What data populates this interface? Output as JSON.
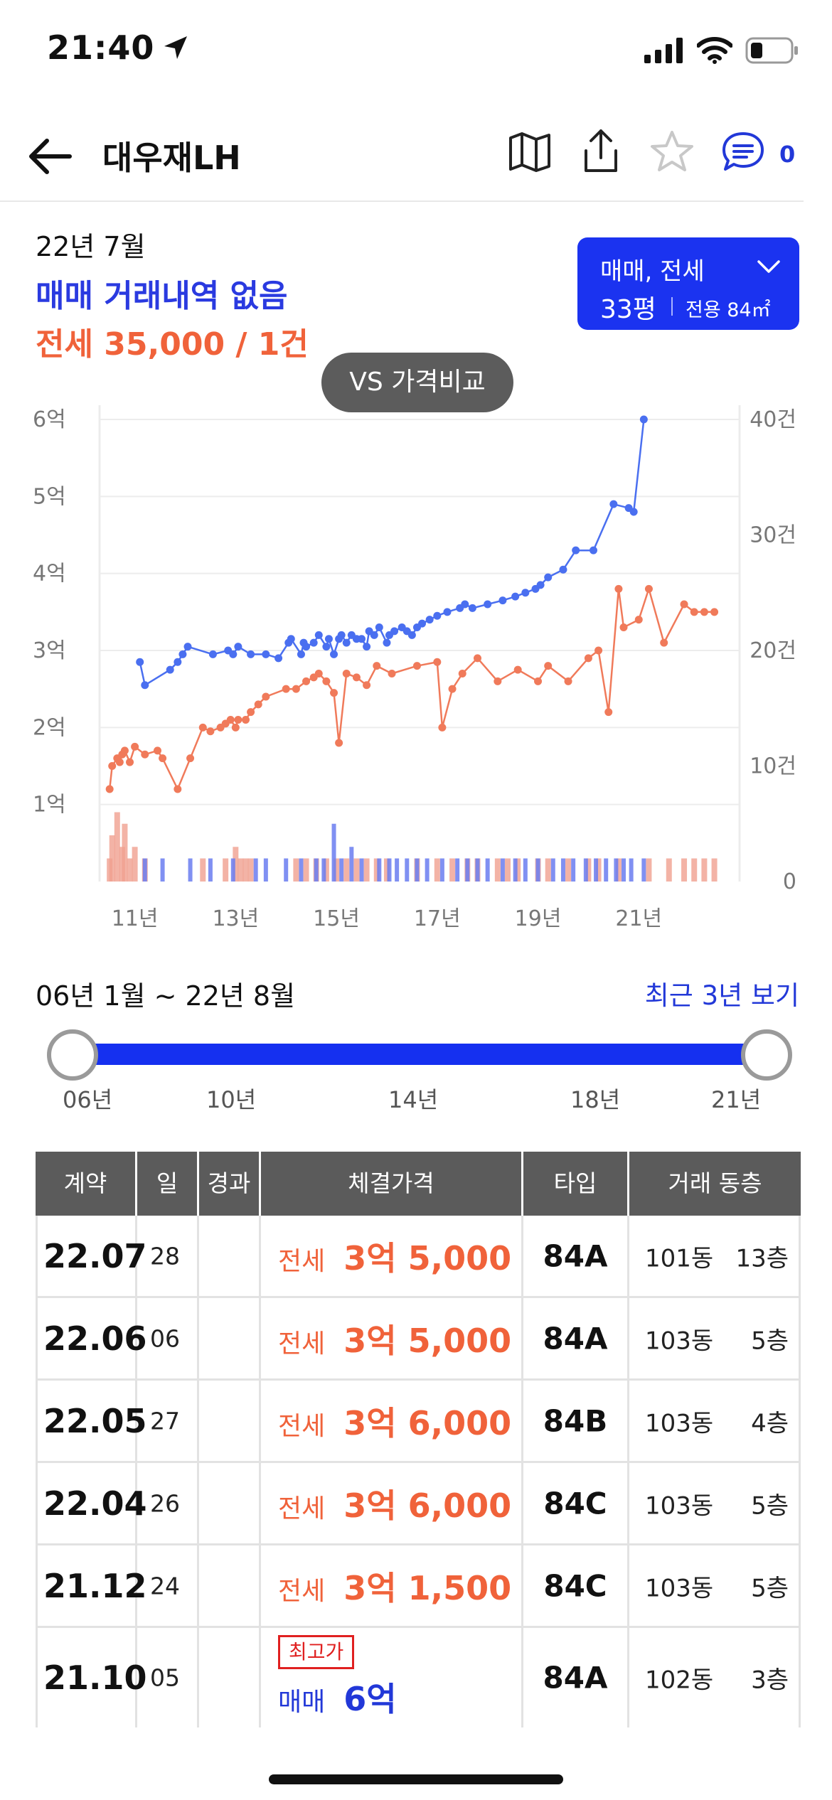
{
  "status_bar": {
    "time": "21:40"
  },
  "header": {
    "title": "대우재LH",
    "chat_count": "0"
  },
  "summary": {
    "date": "22년 7월",
    "sale": "매매 거래내역 없음",
    "lease": "전세 35,000 / 1건"
  },
  "filter": {
    "type": "매매, 전세",
    "size": "33평",
    "area": "전용 84㎡"
  },
  "vs_button": "VS 가격비교",
  "chart_data": {
    "type": "line",
    "x_labels": [
      "11년",
      "13년",
      "15년",
      "17년",
      "19년",
      "21년"
    ],
    "y_left_labels": [
      "1억",
      "2억",
      "3억",
      "4억",
      "5억",
      "6억"
    ],
    "y_left_range": [
      0,
      6
    ],
    "y_right_labels": [
      "0",
      "10건",
      "20건",
      "30건",
      "40건"
    ],
    "y_right_range": [
      0,
      40
    ],
    "x_range": [
      2010.3,
      2023.0
    ],
    "grid": true,
    "series": [
      {
        "color": "#4a6ff0",
        "x": [
          2011.1,
          2011.2,
          2011.7,
          2011.85,
          2011.95,
          2012.05,
          2012.55,
          2012.85,
          2012.95,
          2013.05,
          2013.3,
          2013.6,
          2013.85,
          2014.05,
          2014.1,
          2014.3,
          2014.35,
          2014.4,
          2014.55,
          2014.65,
          2014.8,
          2014.85,
          2014.95,
          2015.05,
          2015.1,
          2015.2,
          2015.3,
          2015.4,
          2015.5,
          2015.6,
          2015.65,
          2015.75,
          2015.85,
          2016.0,
          2016.05,
          2016.15,
          2016.3,
          2016.4,
          2016.5,
          2016.6,
          2016.7,
          2016.85,
          2017.0,
          2017.2,
          2017.45,
          2017.55,
          2017.7,
          2018.0,
          2018.3,
          2018.55,
          2018.75,
          2018.95,
          2019.05,
          2019.2,
          2019.5,
          2019.75,
          2020.1,
          2020.5,
          2020.8,
          2020.9,
          2021.1
        ],
        "y": [
          2.85,
          2.55,
          2.75,
          2.85,
          2.95,
          3.05,
          2.95,
          3.0,
          2.95,
          3.05,
          2.95,
          2.95,
          2.9,
          3.1,
          3.15,
          2.95,
          3.1,
          3.05,
          3.1,
          3.2,
          3.05,
          3.15,
          2.95,
          3.15,
          3.2,
          3.1,
          3.2,
          3.15,
          3.15,
          3.05,
          3.25,
          3.2,
          3.3,
          3.1,
          3.2,
          3.25,
          3.3,
          3.25,
          3.2,
          3.3,
          3.35,
          3.4,
          3.45,
          3.5,
          3.55,
          3.6,
          3.55,
          3.6,
          3.65,
          3.7,
          3.75,
          3.8,
          3.85,
          3.95,
          4.05,
          4.3,
          4.3,
          4.9,
          4.85,
          4.8,
          6.0
        ]
      },
      {
        "color": "#f07a5a",
        "x": [
          2010.5,
          2010.55,
          2010.65,
          2010.7,
          2010.75,
          2010.8,
          2010.9,
          2011.0,
          2011.2,
          2011.45,
          2011.55,
          2011.85,
          2012.1,
          2012.35,
          2012.5,
          2012.7,
          2012.8,
          2012.9,
          2013.0,
          2013.05,
          2013.2,
          2013.3,
          2013.45,
          2013.6,
          2014.0,
          2014.2,
          2014.4,
          2014.55,
          2014.65,
          2014.8,
          2014.95,
          2015.05,
          2015.2,
          2015.4,
          2015.6,
          2015.8,
          2016.1,
          2016.6,
          2017.0,
          2017.1,
          2017.3,
          2017.5,
          2017.8,
          2018.2,
          2018.6,
          2019.0,
          2019.2,
          2019.6,
          2020.0,
          2020.2,
          2020.4,
          2020.6,
          2020.7,
          2021.0,
          2021.2,
          2021.5,
          2021.9,
          2022.1,
          2022.3,
          2022.5
        ],
        "y": [
          1.2,
          1.5,
          1.6,
          1.55,
          1.65,
          1.7,
          1.55,
          1.75,
          1.65,
          1.7,
          1.6,
          1.2,
          1.6,
          2.0,
          1.95,
          2.0,
          2.05,
          2.1,
          2.0,
          2.1,
          2.1,
          2.2,
          2.3,
          2.4,
          2.5,
          2.5,
          2.6,
          2.65,
          2.7,
          2.6,
          2.45,
          1.8,
          2.7,
          2.65,
          2.55,
          2.8,
          2.7,
          2.8,
          2.85,
          2.0,
          2.5,
          2.7,
          2.9,
          2.6,
          2.75,
          2.6,
          2.8,
          2.6,
          2.9,
          3.0,
          2.2,
          3.8,
          3.3,
          3.4,
          3.8,
          3.1,
          3.6,
          3.5,
          3.5,
          3.5
        ]
      }
    ],
    "volume_bars": {
      "sale_color": "#6a7cf0",
      "lease_color": "#f0a090",
      "lease": [
        [
          2010.5,
          2
        ],
        [
          2010.55,
          4
        ],
        [
          2010.65,
          6
        ],
        [
          2010.75,
          3
        ],
        [
          2010.8,
          5
        ],
        [
          2010.9,
          2
        ],
        [
          2011.0,
          3
        ],
        [
          2011.2,
          2
        ],
        [
          2012.35,
          2
        ],
        [
          2012.8,
          2
        ],
        [
          2013.0,
          3
        ],
        [
          2013.1,
          2
        ],
        [
          2013.2,
          2
        ],
        [
          2013.3,
          2
        ],
        [
          2014.2,
          2
        ],
        [
          2014.4,
          2
        ],
        [
          2014.6,
          2
        ],
        [
          2014.8,
          2
        ],
        [
          2015.0,
          2
        ],
        [
          2015.2,
          2
        ],
        [
          2015.4,
          2
        ],
        [
          2015.6,
          2
        ],
        [
          2015.8,
          2
        ],
        [
          2016.0,
          2
        ],
        [
          2016.6,
          2
        ],
        [
          2017.0,
          2
        ],
        [
          2017.3,
          2
        ],
        [
          2017.6,
          2
        ],
        [
          2017.8,
          2
        ],
        [
          2018.2,
          2
        ],
        [
          2018.4,
          2
        ],
        [
          2018.6,
          2
        ],
        [
          2019.0,
          2
        ],
        [
          2019.2,
          2
        ],
        [
          2019.6,
          2
        ],
        [
          2020.0,
          2
        ],
        [
          2020.2,
          2
        ],
        [
          2020.6,
          2
        ],
        [
          2021.2,
          2
        ],
        [
          2021.6,
          2
        ],
        [
          2021.9,
          2
        ],
        [
          2022.1,
          2
        ],
        [
          2022.3,
          2
        ],
        [
          2022.5,
          2
        ]
      ],
      "sale": [
        [
          2011.2,
          2
        ],
        [
          2011.55,
          2
        ],
        [
          2012.1,
          2
        ],
        [
          2012.5,
          2
        ],
        [
          2012.95,
          2
        ],
        [
          2013.4,
          2
        ],
        [
          2013.6,
          2
        ],
        [
          2014.0,
          2
        ],
        [
          2014.3,
          2
        ],
        [
          2014.6,
          2
        ],
        [
          2014.75,
          2
        ],
        [
          2014.95,
          5
        ],
        [
          2015.1,
          2
        ],
        [
          2015.3,
          3
        ],
        [
          2015.5,
          2
        ],
        [
          2015.85,
          2
        ],
        [
          2016.05,
          2
        ],
        [
          2016.2,
          2
        ],
        [
          2016.4,
          2
        ],
        [
          2016.6,
          2
        ],
        [
          2016.8,
          2
        ],
        [
          2017.1,
          2
        ],
        [
          2017.4,
          2
        ],
        [
          2017.6,
          2
        ],
        [
          2017.8,
          2
        ],
        [
          2018.0,
          2
        ],
        [
          2018.3,
          2
        ],
        [
          2018.55,
          2
        ],
        [
          2018.75,
          2
        ],
        [
          2019.0,
          2
        ],
        [
          2019.3,
          2
        ],
        [
          2019.5,
          2
        ],
        [
          2019.7,
          2
        ],
        [
          2019.95,
          2
        ],
        [
          2020.15,
          2
        ],
        [
          2020.35,
          2
        ],
        [
          2020.55,
          2
        ],
        [
          2020.7,
          2
        ],
        [
          2020.85,
          2
        ],
        [
          2021.1,
          2
        ]
      ]
    }
  },
  "range": {
    "label": "06년 1월 ~ 22년 8월",
    "recent_link": "최근 3년 보기",
    "ticks": [
      "06년",
      "10년",
      "14년",
      "18년",
      "21년"
    ]
  },
  "table": {
    "headers": [
      "계약",
      "일",
      "경과",
      "체결가격",
      "타입",
      "거래 동층"
    ],
    "rows": [
      {
        "date": "22.07",
        "day": "28",
        "elapsed": "",
        "kind": "전세",
        "price": "3억 5,000",
        "type": "84A",
        "building": "101동",
        "floor": "13층"
      },
      {
        "date": "22.06",
        "day": "06",
        "elapsed": "",
        "kind": "전세",
        "price": "3억 5,000",
        "type": "84A",
        "building": "103동",
        "floor": "5층"
      },
      {
        "date": "22.05",
        "day": "27",
        "elapsed": "",
        "kind": "전세",
        "price": "3억 6,000",
        "type": "84B",
        "building": "103동",
        "floor": "4층"
      },
      {
        "date": "22.04",
        "day": "26",
        "elapsed": "",
        "kind": "전세",
        "price": "3억 6,000",
        "type": "84C",
        "building": "103동",
        "floor": "5층"
      },
      {
        "date": "21.12",
        "day": "24",
        "elapsed": "",
        "kind": "전세",
        "price": "3억 1,500",
        "type": "84C",
        "building": "103동",
        "floor": "5층"
      },
      {
        "date": "21.10",
        "day": "05",
        "elapsed": "",
        "kind": "매매",
        "price": "6억",
        "badge": "최고가",
        "type": "84A",
        "building": "102동",
        "floor": "3층"
      }
    ]
  }
}
